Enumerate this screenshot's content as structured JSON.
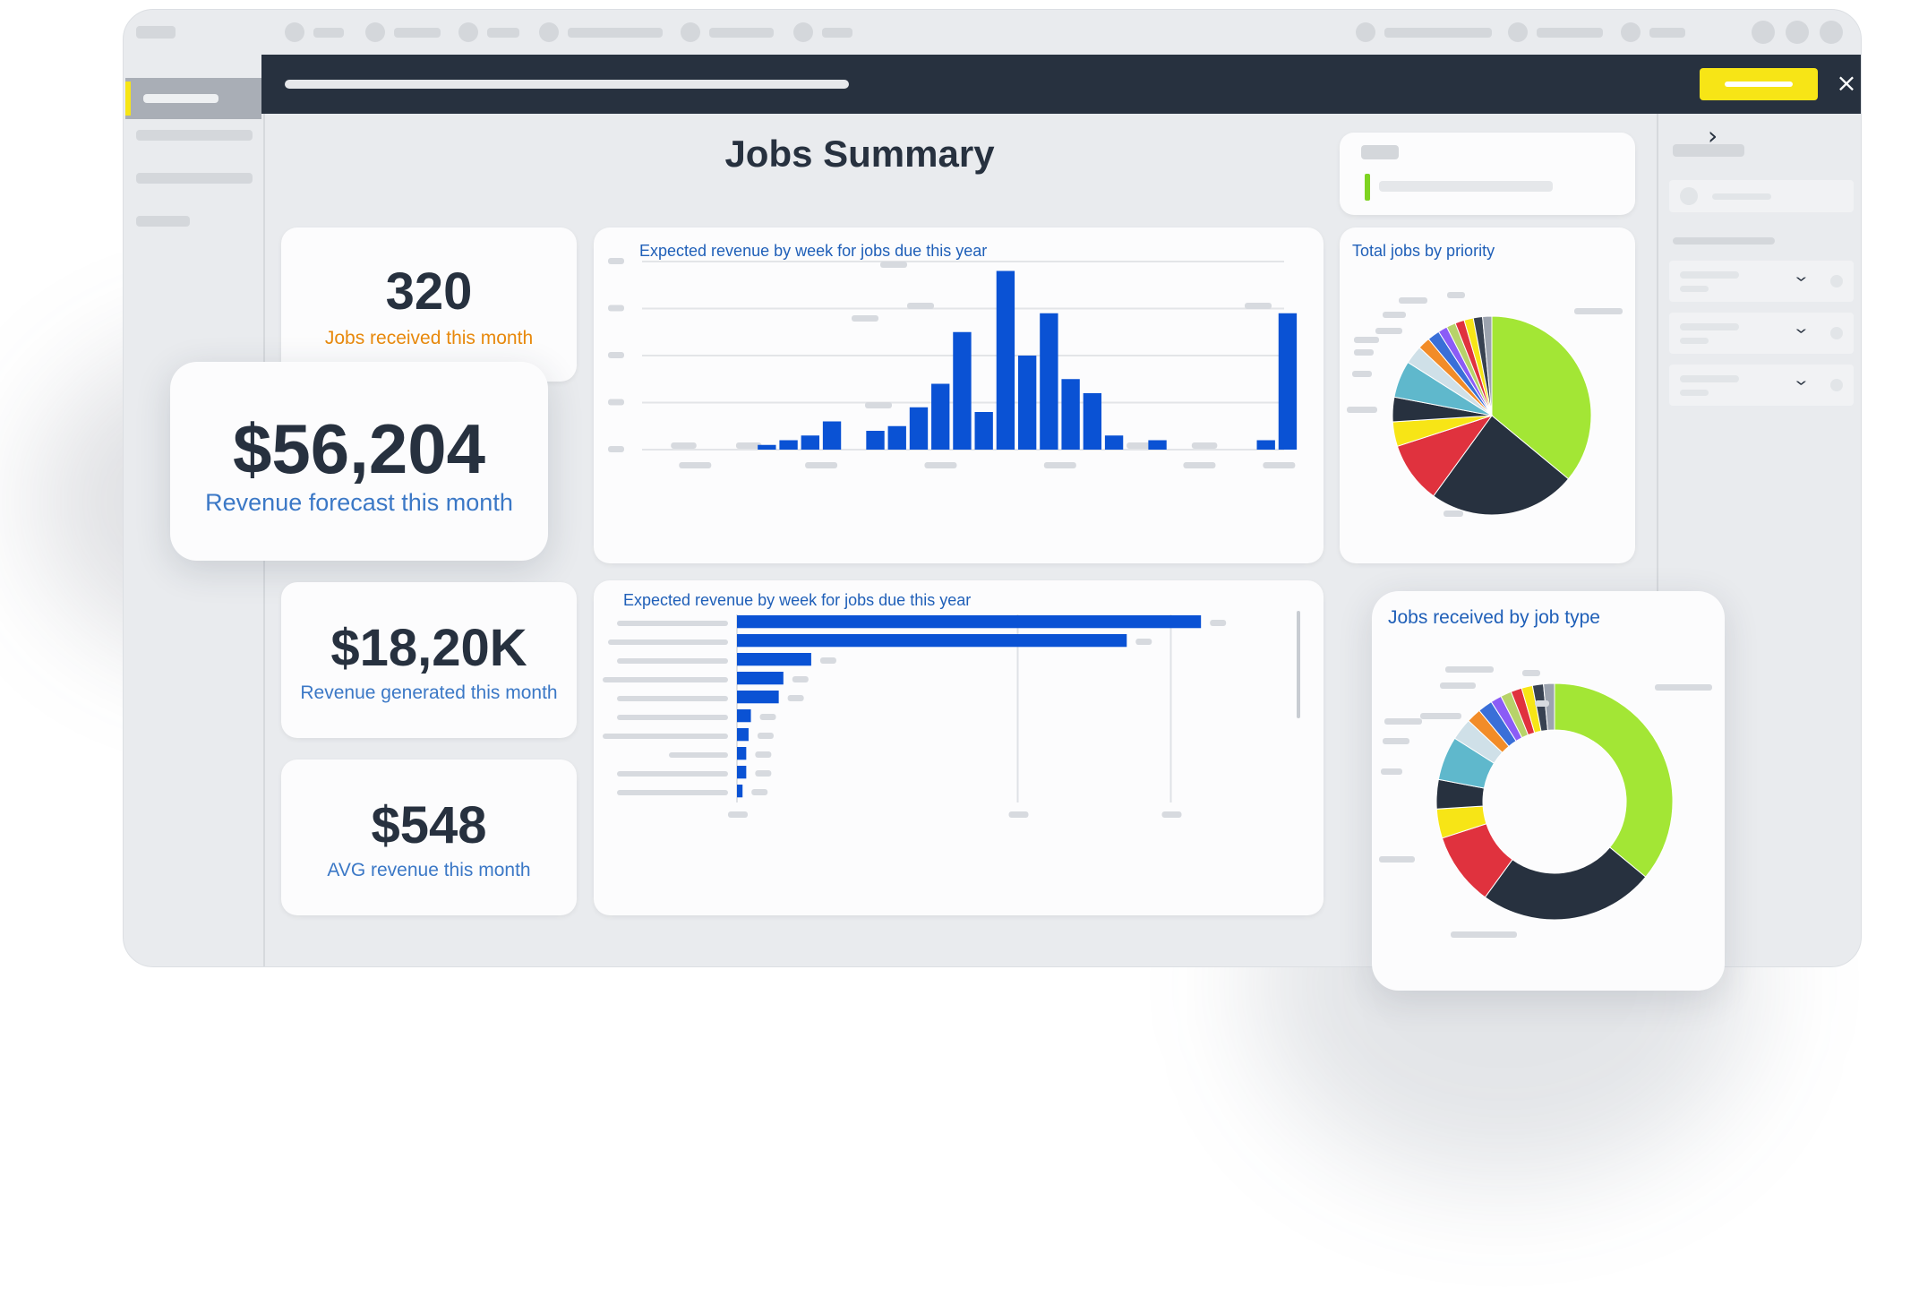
{
  "page": {
    "title": "Jobs Summary"
  },
  "actions": {
    "close_label": "×"
  },
  "nav": {
    "chevron_right": "›",
    "dropdown_chevron": "›"
  },
  "kpis": [
    {
      "value": "320",
      "label": "Jobs received this month"
    },
    {
      "value": "$56,204",
      "label": "Revenue forecast this month"
    },
    {
      "value": "$18,20K",
      "label": "Revenue generated this month"
    },
    {
      "value": "$548",
      "label": "AVG revenue this month"
    }
  ],
  "colors": {
    "accent_yellow": "#f7e516",
    "dark": "#27313f",
    "bar_blue": "#0a52d4",
    "kpi_orange": "#e8890c",
    "kpi_blue": "#3b78c6",
    "title_blue": "#1f5fb8"
  },
  "chart_data": [
    {
      "type": "bar",
      "title": "Expected revenue by week for jobs due this year",
      "values": [
        0,
        0,
        0,
        0,
        0,
        1,
        2,
        3,
        6,
        0,
        4,
        5,
        9,
        14,
        25,
        8,
        38,
        20,
        29,
        15,
        12,
        3,
        0,
        2,
        0,
        0,
        0,
        0,
        2,
        29
      ],
      "ylim": [
        0,
        40
      ],
      "grid": true
    },
    {
      "type": "bar",
      "orientation": "horizontal",
      "title": "Expected revenue by week for jobs due this year",
      "values": [
        100,
        84,
        16,
        10,
        9,
        3,
        2.5,
        2,
        2,
        1.2
      ],
      "xlim": [
        0,
        110
      ],
      "grid": true
    },
    {
      "type": "pie",
      "title": "Total jobs by priority",
      "series": [
        {
          "value": 36,
          "color": "#a3e635"
        },
        {
          "value": 24,
          "color": "#27313f"
        },
        {
          "value": 10,
          "color": "#e0323e"
        },
        {
          "value": 4,
          "color": "#f7e516"
        },
        {
          "value": 4,
          "color": "#27313f"
        },
        {
          "value": 6,
          "color": "#5fb8cc"
        },
        {
          "value": 3,
          "color": "#cfe0e8"
        },
        {
          "value": 2,
          "color": "#f28c28"
        },
        {
          "value": 2,
          "color": "#3a6fd8"
        },
        {
          "value": 1.5,
          "color": "#8b5cf6"
        },
        {
          "value": 1.5,
          "color": "#b7d36a"
        },
        {
          "value": 1.5,
          "color": "#e0323e"
        },
        {
          "value": 1.5,
          "color": "#f7e516"
        },
        {
          "value": 1.5,
          "color": "#374151"
        },
        {
          "value": 1.5,
          "color": "#9ca3af"
        }
      ]
    },
    {
      "type": "pie",
      "subtype": "donut",
      "title": "Jobs received by job type",
      "series": [
        {
          "value": 36,
          "color": "#a3e635"
        },
        {
          "value": 24,
          "color": "#27313f"
        },
        {
          "value": 10,
          "color": "#e0323e"
        },
        {
          "value": 4,
          "color": "#f7e516"
        },
        {
          "value": 4,
          "color": "#27313f"
        },
        {
          "value": 6,
          "color": "#5fb8cc"
        },
        {
          "value": 3,
          "color": "#cfe0e8"
        },
        {
          "value": 2,
          "color": "#f28c28"
        },
        {
          "value": 2,
          "color": "#3a6fd8"
        },
        {
          "value": 1.5,
          "color": "#8b5cf6"
        },
        {
          "value": 1.5,
          "color": "#b7d36a"
        },
        {
          "value": 1.5,
          "color": "#e0323e"
        },
        {
          "value": 1.5,
          "color": "#f7e516"
        },
        {
          "value": 1.5,
          "color": "#374151"
        },
        {
          "value": 1.5,
          "color": "#9ca3af"
        }
      ]
    }
  ]
}
